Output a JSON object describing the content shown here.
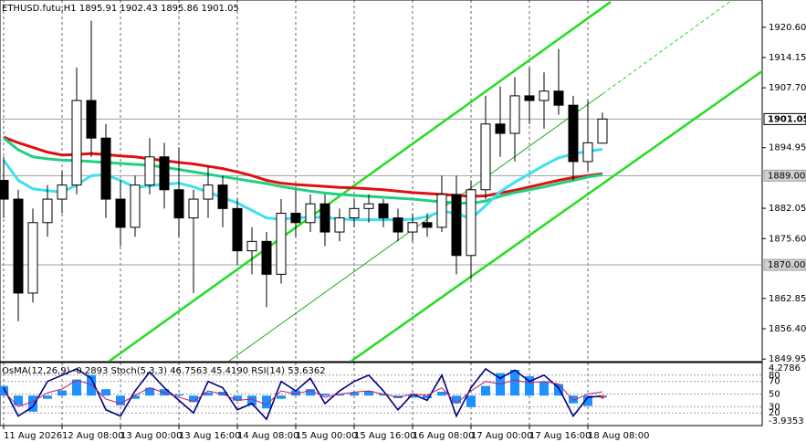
{
  "chart_data": {
    "type": "candlestick",
    "title": "ETHUSD.futu,H1",
    "x": [
      0,
      4,
      8,
      12,
      16,
      20,
      24,
      28,
      32,
      36,
      40,
      44,
      48,
      52,
      56,
      60,
      64,
      68,
      72,
      76,
      80,
      84,
      88,
      92,
      96,
      100,
      104,
      108,
      112,
      116,
      120,
      124,
      128,
      132,
      136,
      140,
      144,
      148,
      152,
      156,
      160,
      164
    ],
    "open": [
      1888,
      1884,
      1864,
      1879,
      1884,
      1887,
      1905,
      1897,
      1884,
      1878,
      1887,
      1893,
      1886,
      1880,
      1884,
      1887,
      1882,
      1873,
      1875,
      1868,
      1881,
      1879,
      1883,
      1877,
      1880,
      1882,
      1883,
      1880,
      1877,
      1879,
      1878,
      1885,
      1872,
      1886,
      1900,
      1898,
      1906,
      1905,
      1907,
      1904,
      1892,
      1895.91
    ],
    "high": [
      1893,
      1886,
      1882,
      1887,
      1890,
      1912,
      1922,
      1900,
      1888,
      1889,
      1897,
      1896,
      1895,
      1886,
      1891,
      1889,
      1884,
      1878,
      1877,
      1884,
      1886,
      1885,
      1885,
      1882,
      1884,
      1885,
      1884,
      1882,
      1881,
      1881,
      1889,
      1889,
      1888,
      1906,
      1908,
      1910,
      1912,
      1911,
      1916,
      1906,
      1905,
      1902.43
    ],
    "low": [
      1880,
      1858,
      1862,
      1876,
      1881,
      1885,
      1893,
      1880,
      1874,
      1876,
      1885,
      1882,
      1876,
      1864,
      1880,
      1878,
      1870,
      1868,
      1861,
      1866,
      1876,
      1877,
      1874,
      1875,
      1878,
      1879,
      1878,
      1875,
      1875,
      1876,
      1877,
      1868,
      1867,
      1884,
      1893,
      1892,
      1900,
      1899,
      1902,
      1888,
      1890,
      1895.86
    ],
    "close": [
      1884,
      1864,
      1879,
      1884,
      1887,
      1905,
      1897,
      1884,
      1878,
      1887,
      1893,
      1886,
      1880,
      1884,
      1887,
      1882,
      1873,
      1875,
      1868,
      1881,
      1879,
      1883,
      1877,
      1880,
      1882,
      1883,
      1880,
      1877,
      1879,
      1878,
      1885,
      1872,
      1886,
      1900,
      1898,
      1906,
      1905,
      1907,
      1904,
      1892,
      1896,
      1901.05
    ],
    "up_color": "#ffffff",
    "down_color": "#000000",
    "series": [
      {
        "color": "#e01010",
        "values": [
          1897.2,
          1896,
          1895,
          1894,
          1893.4,
          1893.5,
          1893.7,
          1893.5,
          1893.2,
          1893,
          1892.6,
          1892.2,
          1891.8,
          1891.5,
          1891,
          1890.5,
          1889.8,
          1889,
          1888,
          1887.4,
          1887.1,
          1886.9,
          1886.7,
          1886.5,
          1886.4,
          1886.2,
          1886,
          1885.7,
          1885.4,
          1885.2,
          1885,
          1884.8,
          1884.6,
          1884.7,
          1885.3,
          1885.9,
          1886.6,
          1887.3,
          1888,
          1888.6,
          1889,
          1889.4
        ]
      },
      {
        "color": "#20d080",
        "values": [
          1897,
          1894.5,
          1893,
          1892.6,
          1892.3,
          1892.2,
          1892,
          1891.8,
          1891.6,
          1891.4,
          1891.2,
          1890.8,
          1890.3,
          1889.8,
          1889.3,
          1888.8,
          1888.3,
          1887.8,
          1887.3,
          1886.7,
          1886.2,
          1885.7,
          1885.3,
          1885,
          1884.8,
          1884.6,
          1884.4,
          1884.2,
          1884,
          1883.7,
          1883.4,
          1883.2,
          1883.1,
          1883.6,
          1884.6,
          1885.4,
          1886,
          1886.6,
          1887.3,
          1888,
          1888.7,
          1889.2
        ]
      },
      {
        "color": "#40e0f0",
        "values": [
          1892.3,
          1888,
          1886.2,
          1885.8,
          1885.5,
          1887,
          1889,
          1889.2,
          1888,
          1886.5,
          1886.8,
          1887.2,
          1887.4,
          1886.6,
          1885.5,
          1884.3,
          1883.2,
          1881.6,
          1880,
          1879.7,
          1880,
          1880.2,
          1880.1,
          1879.8,
          1879.6,
          1879.6,
          1879.6,
          1879.6,
          1879.7,
          1880.3,
          1881.4,
          1881,
          1879.8,
          1882.6,
          1885.6,
          1887.6,
          1889.4,
          1891.2,
          1892.8,
          1893.6,
          1894.2,
          1894.6
        ]
      }
    ],
    "xlim": [
      -1,
      207.75
    ],
    "ylim": [
      1849.4,
      1926.4
    ],
    "yticks": [
      {
        "value": 1920.6,
        "label": "1920.60"
      },
      1914.15,
      {
        "value": 1907.7,
        "label": "1907.70"
      },
      1894.95,
      1882.05,
      {
        "value": 1875.6,
        "label": "1875.60"
      },
      1862.85,
      {
        "value": 1856.4,
        "label": "1856.40"
      },
      1849.95
    ],
    "xticks": [
      {
        "value": 0,
        "label": "11 Aug 2026"
      },
      {
        "value": 16,
        "label": "12 Aug 08:00"
      },
      {
        "value": 32,
        "label": "13 Aug 00:00"
      },
      {
        "value": 48,
        "label": "13 Aug 16:00"
      },
      {
        "value": 64,
        "label": "14 Aug 08:00"
      },
      {
        "value": 80,
        "label": "15 Aug 00:00"
      },
      {
        "value": 96,
        "label": "15 Aug 16:00"
      },
      {
        "value": 112,
        "label": "16 Aug 08:00"
      },
      {
        "value": 128,
        "label": "17 Aug 00:00"
      },
      {
        "value": 144,
        "label": "17 Aug 16:00"
      },
      {
        "value": 160,
        "label": "18 Aug 08:00"
      }
    ],
    "levels": [
      1901.05,
      {
        "value": 1889,
        "label": "1889.00"
      },
      {
        "value": 1870,
        "label": "1870.00"
      }
    ],
    "trendlines": [
      {
        "color": "#22dd22",
        "x": [
          28.75,
          166.25
        ],
        "y": [
          1849.4,
          1926
        ]
      },
      {
        "color": "#22dd22",
        "x": [
          95,
          208.75
        ],
        "y": [
          1849.4,
          1911.8
        ]
      },
      {
        "color": "#22aa22",
        "x": [
          61.5,
          164
        ],
        "y": [
          1849.4,
          1906.4
        ]
      },
      {
        "color": "#22dd22",
        "dash": true,
        "x": [
          164,
          199
        ],
        "y": [
          1906.4,
          1926.1
        ]
      }
    ],
    "grid": true,
    "indicators": {
      "ylim": [
        -4.66,
        5.14
      ],
      "yticks": [
        -3.9353,
        4.2786
      ],
      "osc_lim": [
        0,
        100
      ],
      "osc_ticks": [
        80,
        70,
        50,
        30,
        20
      ],
      "osma": {
        "label": "OsMA(12,26,9)",
        "color": "#1e90ff",
        "values": [
          1.5,
          -1.5,
          -2.5,
          -0.5,
          0.8,
          2.5,
          3.2,
          1.0,
          -1.5,
          -0.5,
          1.2,
          1.0,
          0.2,
          -1.0,
          0.5,
          0.6,
          -0.8,
          -1.5,
          -2.0,
          -0.5,
          0.8,
          1.0,
          0.3,
          0.2,
          0.5,
          0.7,
          0.3,
          -0.4,
          -0.3,
          -0.4,
          0.6,
          -1.2,
          -1.8,
          1.5,
          3.5,
          4.0,
          3.0,
          2.2,
          1.8,
          -1.2,
          -1.6,
          -0.2893
        ]
      },
      "stoch": {
        "label": "Stoch(5,3,3)",
        "color": "#000080",
        "values": [
          60,
          15,
          30,
          70,
          80,
          90,
          75,
          25,
          15,
          55,
          85,
          60,
          40,
          20,
          70,
          60,
          25,
          35,
          10,
          70,
          55,
          75,
          35,
          55,
          70,
          80,
          55,
          25,
          50,
          40,
          80,
          15,
          60,
          90,
          75,
          88,
          70,
          80,
          60,
          15,
          45,
          46.7563
        ],
        "signal": {
          "value": 45.419,
          "label": "45.4190"
        }
      },
      "rsi": {
        "label": "RSI(14)",
        "color": "#c02060",
        "values": [
          55,
          30,
          38,
          52,
          58,
          72,
          65,
          42,
          35,
          48,
          60,
          52,
          45,
          38,
          55,
          50,
          40,
          42,
          33,
          55,
          50,
          56,
          45,
          50,
          53,
          55,
          50,
          45,
          50,
          48,
          60,
          35,
          55,
          70,
          66,
          72,
          68,
          70,
          66,
          40,
          50,
          53.6362
        ]
      }
    }
  }
}
